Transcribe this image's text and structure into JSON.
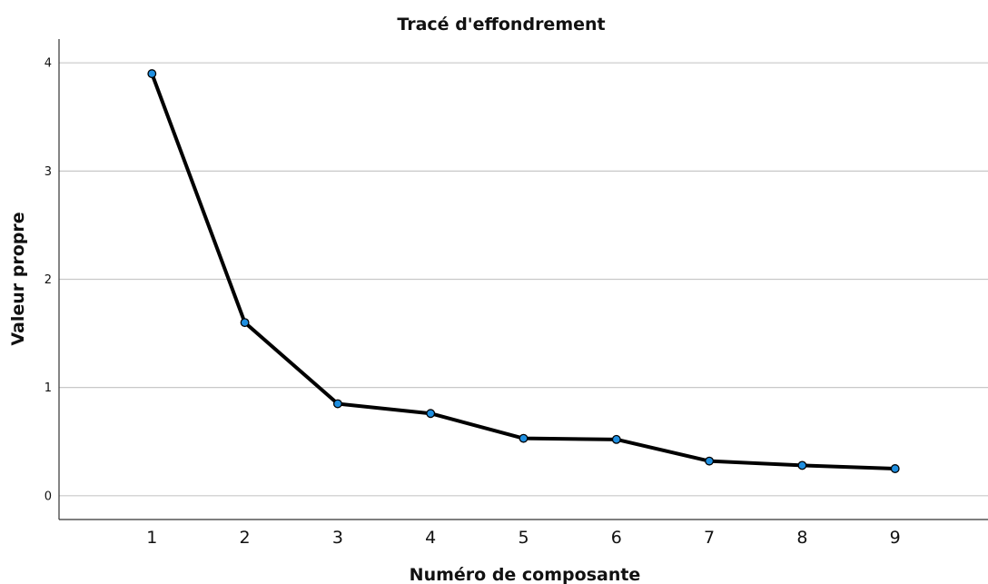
{
  "chart_data": {
    "type": "line",
    "title": "Tracé d'effondrement",
    "xlabel": "Numéro de composante",
    "ylabel": "Valeur propre",
    "x": [
      1,
      2,
      3,
      4,
      5,
      6,
      7,
      8,
      9
    ],
    "series": [
      {
        "values": [
          3.9,
          1.6,
          0.85,
          0.76,
          0.53,
          0.52,
          0.32,
          0.28,
          0.25
        ]
      }
    ],
    "yticks": [
      "0",
      "1",
      "2",
      "3",
      "4"
    ],
    "xticks": [
      "1",
      "2",
      "3",
      "4",
      "5",
      "6",
      "7",
      "8",
      "9"
    ],
    "ylim": [
      -0.22,
      4.22
    ],
    "xlim": [
      0,
      10
    ],
    "grid": "horizontal",
    "legend": "none",
    "colors": {
      "line": "#000000",
      "marker_fill": "#1f8fe0",
      "marker_stroke": "#000000",
      "grid": "#c8c8c8",
      "axis": "#333333"
    }
  }
}
